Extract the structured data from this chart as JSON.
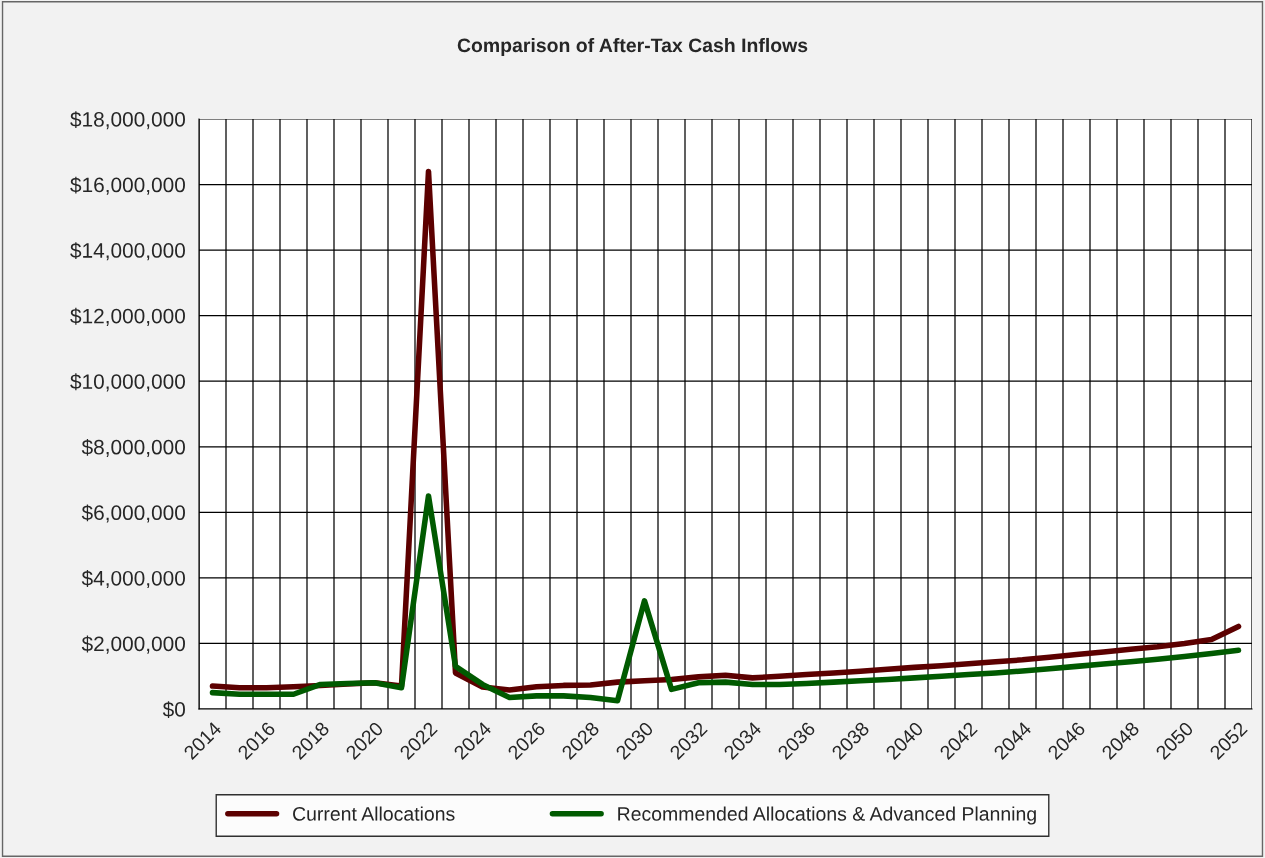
{
  "chart_data": {
    "type": "line",
    "title": "Comparison of After-Tax Cash Inflows",
    "categories": [
      "2014",
      null,
      "2016",
      null,
      "2018",
      null,
      "2020",
      null,
      "2022",
      null,
      "2024",
      null,
      "2026",
      null,
      "2028",
      null,
      "2030",
      null,
      "2032",
      null,
      "2034",
      null,
      "2036",
      null,
      "2038",
      null,
      "2040",
      null,
      "2042",
      null,
      "2044",
      null,
      "2046",
      null,
      "2048",
      null,
      "2050",
      null,
      "2052"
    ],
    "series": [
      {
        "name": "Current Allocations",
        "color": "#5c0000",
        "values": [
          700000,
          650000,
          650000,
          680000,
          720000,
          760000,
          800000,
          700000,
          16400000,
          1100000,
          670000,
          580000,
          680000,
          720000,
          730000,
          820000,
          860000,
          900000,
          980000,
          1030000,
          950000,
          1000000,
          1050000,
          1100000,
          1150000,
          1210000,
          1270000,
          1320000,
          1380000,
          1440000,
          1500000,
          1580000,
          1660000,
          1740000,
          1820000,
          1900000,
          2000000,
          2120000,
          2520000
        ]
      },
      {
        "name": "Recommended Allocations & Advanced Planning",
        "color": "#005a00",
        "values": [
          500000,
          450000,
          450000,
          450000,
          750000,
          780000,
          800000,
          650000,
          6500000,
          1300000,
          750000,
          350000,
          400000,
          400000,
          350000,
          250000,
          3300000,
          600000,
          800000,
          820000,
          750000,
          750000,
          780000,
          820000,
          860000,
          900000,
          950000,
          1000000,
          1050000,
          1100000,
          1160000,
          1230000,
          1300000,
          1370000,
          1440000,
          1520000,
          1600000,
          1690000,
          1790000
        ]
      }
    ],
    "ylim": [
      0,
      18000000
    ],
    "yticks": [
      {
        "value": 0,
        "label": "$0"
      },
      {
        "value": 2000000,
        "label": "$2,000,000"
      },
      {
        "value": 4000000,
        "label": "$4,000,000"
      },
      {
        "value": 6000000,
        "label": "$6,000,000"
      },
      {
        "value": 8000000,
        "label": "$8,000,000"
      },
      {
        "value": 10000000,
        "label": "$10,000,000"
      },
      {
        "value": 12000000,
        "label": "$12,000,000"
      },
      {
        "value": 14000000,
        "label": "$14,000,000"
      },
      {
        "value": 16000000,
        "label": "$16,000,000"
      },
      {
        "value": 18000000,
        "label": "$18,000,000"
      }
    ],
    "grid": true,
    "legend": "bottom",
    "marker": "none",
    "line_style": "solid"
  }
}
